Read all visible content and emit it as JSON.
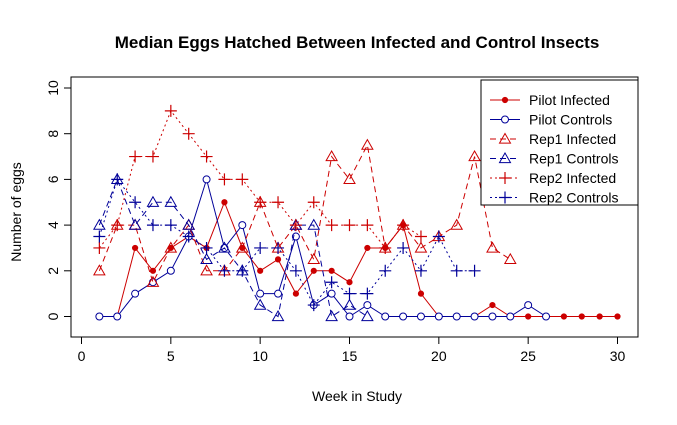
{
  "chart_data": {
    "type": "line",
    "title": "Median Eggs Hatched Between Infected and Control Insects",
    "xlabel": "Week in Study",
    "ylabel": "Number of eggs",
    "xlim": [
      0,
      30
    ],
    "ylim": [
      0,
      10
    ],
    "xticks": [
      0,
      5,
      10,
      15,
      20,
      25,
      30
    ],
    "yticks": [
      0,
      2,
      4,
      6,
      8,
      10
    ],
    "grid": false,
    "legend_position": "top-right",
    "series": [
      {
        "name": "Pilot Infected",
        "color": "#cc0000",
        "line": "solid",
        "marker": "circle",
        "x": [
          1,
          2,
          3,
          4,
          5,
          6,
          7,
          8,
          9,
          10,
          11,
          12,
          13,
          14,
          15,
          16,
          17,
          18,
          19,
          20,
          21,
          22,
          23,
          24,
          25,
          26,
          27,
          28,
          29,
          30
        ],
        "y": [
          0,
          0,
          3,
          2,
          3,
          3.5,
          3,
          5,
          3,
          2,
          2.5,
          1,
          2,
          2,
          1.5,
          3,
          3,
          4,
          1,
          0,
          0,
          0,
          0.5,
          0,
          0,
          0,
          0,
          0,
          0,
          0
        ]
      },
      {
        "name": "Pilot Controls",
        "color": "#000099",
        "line": "solid",
        "marker": "circle-open",
        "x": [
          1,
          2,
          3,
          4,
          5,
          6,
          7,
          8,
          9,
          10,
          11,
          12,
          13,
          14,
          15,
          16,
          17,
          18,
          19,
          20,
          21,
          22,
          23,
          24,
          25,
          26
        ],
        "y": [
          0,
          0,
          1,
          1.5,
          2,
          3.5,
          6,
          3,
          4,
          1,
          1,
          3.5,
          0.5,
          1,
          0,
          0.5,
          0,
          0,
          0,
          0,
          0,
          0,
          0,
          0,
          0.5,
          0
        ]
      },
      {
        "name": "Rep1 Infected",
        "color": "#cc0000",
        "line": "dashed",
        "marker": "triangle-open",
        "x": [
          1,
          2,
          3,
          4,
          5,
          6,
          7,
          8,
          9,
          10,
          11,
          12,
          13,
          14,
          15,
          16,
          17,
          18,
          19,
          20,
          21,
          22,
          23,
          24
        ],
        "y": [
          2,
          4,
          4,
          1.5,
          3,
          4,
          2,
          2,
          3,
          5,
          3,
          4,
          2.5,
          7,
          6,
          7.5,
          3,
          4,
          3,
          3.5,
          4,
          7,
          3,
          2.5
        ]
      },
      {
        "name": "Rep1 Controls",
        "color": "#000099",
        "line": "dashed",
        "marker": "triangle-open",
        "x": [
          1,
          2,
          3,
          4,
          5,
          6,
          7,
          8,
          9,
          10,
          11,
          12,
          13,
          14,
          15,
          16
        ],
        "y": [
          4,
          6,
          4,
          5,
          5,
          4,
          2.5,
          3,
          2,
          0.5,
          0,
          4,
          4,
          0,
          0.5,
          0
        ]
      },
      {
        "name": "Rep2 Infected",
        "color": "#cc0000",
        "line": "dotted",
        "marker": "plus",
        "x": [
          1,
          2,
          3,
          4,
          5,
          6,
          7,
          8,
          9,
          10,
          11,
          12,
          13,
          14,
          15,
          16,
          17,
          18,
          19
        ],
        "y": [
          3,
          4,
          7,
          7,
          9,
          8,
          7,
          6,
          6,
          5,
          5,
          4,
          5,
          4,
          4,
          4,
          3,
          4,
          3.5
        ]
      },
      {
        "name": "Rep2 Controls",
        "color": "#000099",
        "line": "dotted",
        "marker": "plus",
        "x": [
          1,
          2,
          3,
          4,
          5,
          6,
          7,
          8,
          9,
          10,
          11,
          12,
          13,
          14,
          15,
          16,
          17,
          18,
          19,
          20,
          21,
          22
        ],
        "y": [
          3.5,
          6,
          5,
          4,
          4,
          3.5,
          3,
          2,
          2,
          3,
          3,
          2,
          0.5,
          1.5,
          1,
          1,
          2,
          3,
          2,
          3.5,
          2,
          2
        ]
      }
    ]
  }
}
